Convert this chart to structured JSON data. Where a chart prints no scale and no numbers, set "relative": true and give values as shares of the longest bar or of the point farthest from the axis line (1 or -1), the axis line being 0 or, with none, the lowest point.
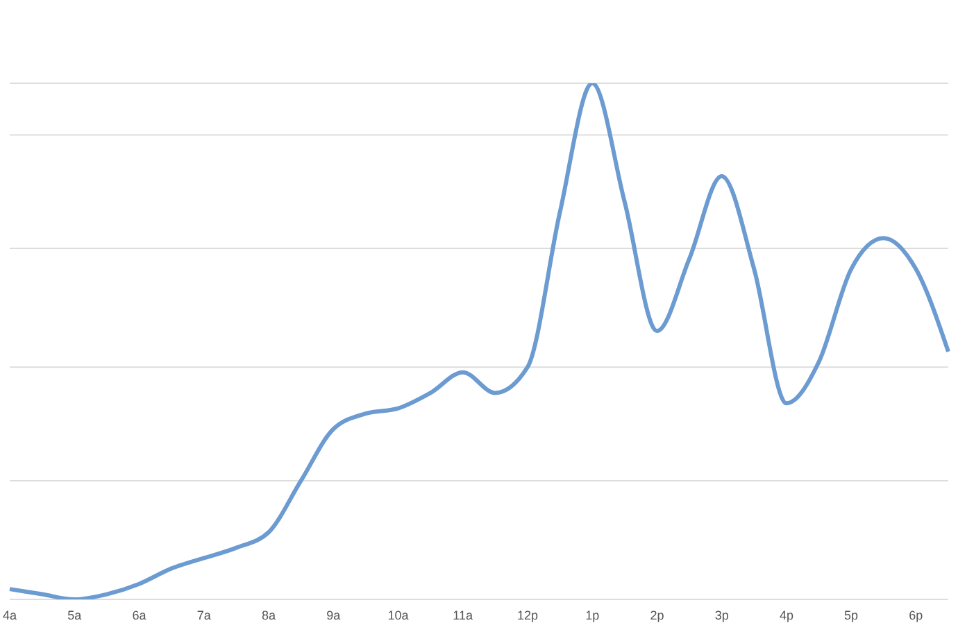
{
  "chart_data": {
    "type": "line",
    "relative": true,
    "grid": "y",
    "marker": "none",
    "line_style": "solid",
    "categories": [
      "4a",
      null,
      "5a",
      null,
      "6a",
      null,
      "7a",
      null,
      "8a",
      null,
      "9a",
      null,
      "10a",
      null,
      "11a",
      null,
      "12p",
      null,
      "1p",
      null,
      "2p",
      null,
      "3p",
      null,
      "4p",
      null,
      "5p",
      null,
      "6p",
      null
    ],
    "series": [
      {
        "color": "#6b9bd1",
        "values": [
          0.02,
          0.01,
          0,
          0.01,
          0.03,
          0.06,
          0.08,
          0.1,
          0.13,
          0.23,
          0.33,
          0.36,
          0.37,
          0.4,
          0.44,
          0.4,
          0.45,
          0.75,
          1,
          0.77,
          0.52,
          0.66,
          0.82,
          0.64,
          0.38,
          0.46,
          0.64,
          0.7,
          0.64,
          0.48
        ]
      }
    ]
  }
}
